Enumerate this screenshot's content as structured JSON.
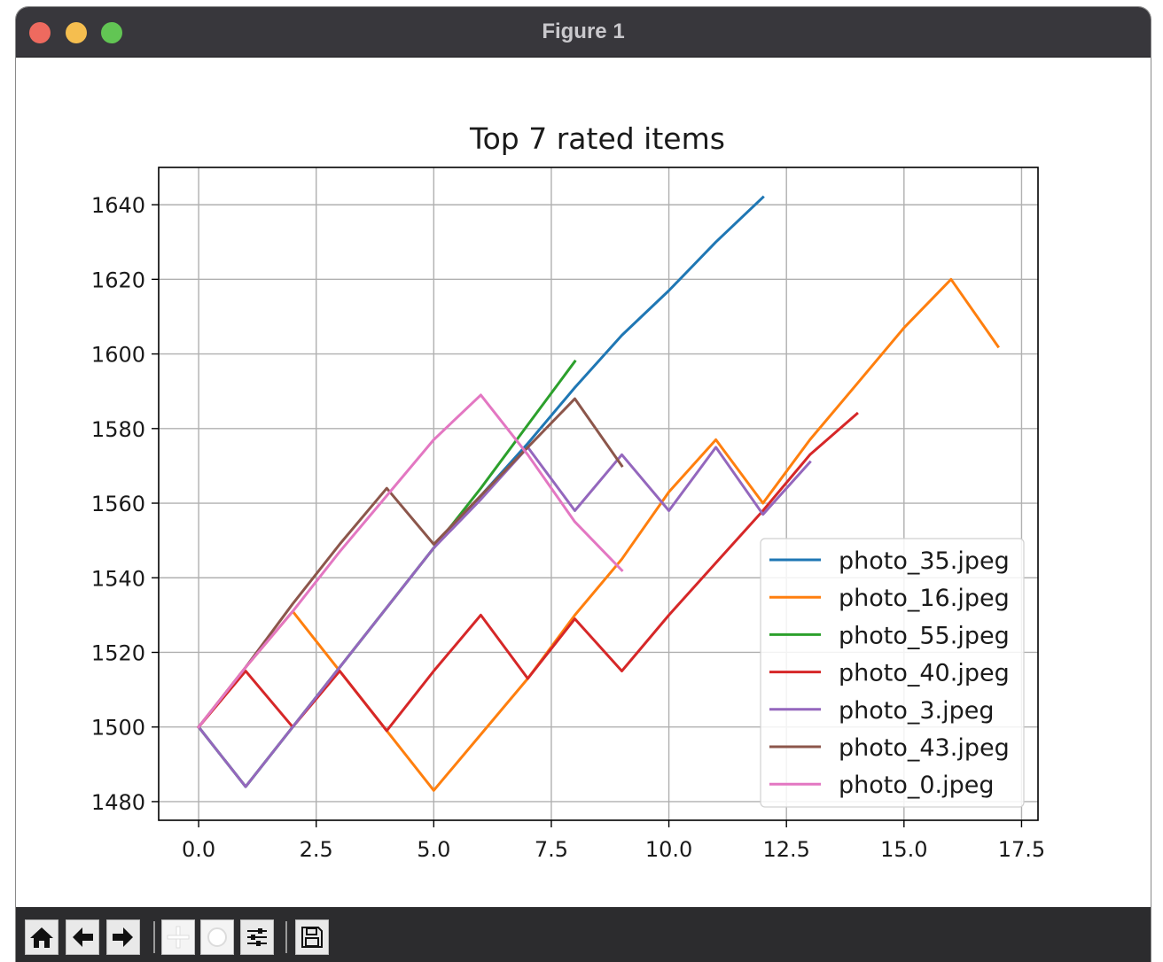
{
  "window": {
    "title": "Figure 1"
  },
  "toolbar": {
    "buttons": [
      {
        "icon": "home-icon"
      },
      {
        "icon": "back-arrow-icon"
      },
      {
        "icon": "forward-arrow-icon"
      },
      {
        "icon": "pan-icon"
      },
      {
        "icon": "zoom-icon"
      },
      {
        "icon": "configure-subplots-icon"
      },
      {
        "icon": "save-icon"
      }
    ]
  },
  "chart_data": {
    "type": "line",
    "title": "Top 7 rated items",
    "xlabel": "",
    "ylabel": "",
    "xlim": [
      -0.85,
      17.85
    ],
    "ylim": [
      1475,
      1650
    ],
    "xticks": [
      "0.0",
      "2.5",
      "5.0",
      "7.5",
      "10.0",
      "12.5",
      "15.0",
      "17.5"
    ],
    "xtick_values": [
      0,
      2.5,
      5,
      7.5,
      10,
      12.5,
      15,
      17.5
    ],
    "yticks": [
      "1480",
      "1500",
      "1520",
      "1540",
      "1560",
      "1580",
      "1600",
      "1620",
      "1640"
    ],
    "ytick_values": [
      1480,
      1500,
      1520,
      1540,
      1560,
      1580,
      1600,
      1620,
      1640
    ],
    "grid": true,
    "legend_position": "lower right",
    "series": [
      {
        "name": "photo_35.jpeg",
        "color": "#1f77b4",
        "x": [
          0,
          1,
          2,
          3,
          4,
          5,
          6,
          7,
          8,
          9,
          10,
          11,
          12
        ],
        "y": [
          1500,
          1484,
          1500,
          1516,
          1532,
          1548,
          1562,
          1576,
          1591,
          1605,
          1617,
          1630,
          1642
        ]
      },
      {
        "name": "photo_16.jpeg",
        "color": "#ff7f0e",
        "x": [
          0,
          1,
          2,
          3,
          4,
          5,
          6,
          7,
          8,
          9,
          10,
          11,
          12,
          13,
          14,
          15,
          16,
          17
        ],
        "y": [
          1500,
          1516,
          1531,
          1515,
          1499,
          1483,
          1498,
          1513,
          1530,
          1545,
          1563,
          1577,
          1560,
          1577,
          1592,
          1607,
          1620,
          1602
        ]
      },
      {
        "name": "photo_55.jpeg",
        "color": "#2ca02c",
        "x": [
          0,
          1,
          2,
          3,
          4,
          5,
          6,
          7,
          8
        ],
        "y": [
          1500,
          1484,
          1500,
          1516,
          1532,
          1548,
          1564,
          1581,
          1598
        ]
      },
      {
        "name": "photo_40.jpeg",
        "color": "#d62728",
        "x": [
          0,
          1,
          2,
          3,
          4,
          5,
          6,
          7,
          8,
          9,
          10,
          11,
          12,
          13,
          14
        ],
        "y": [
          1500,
          1515,
          1500,
          1515,
          1499,
          1515,
          1530,
          1513,
          1529,
          1515,
          1530,
          1544,
          1558,
          1573,
          1584
        ]
      },
      {
        "name": "photo_3.jpeg",
        "color": "#9467bd",
        "x": [
          0,
          1,
          2,
          3,
          4,
          5,
          6,
          7,
          8,
          9,
          10,
          11,
          12,
          13
        ],
        "y": [
          1500,
          1484,
          1500,
          1516,
          1532,
          1548,
          1561,
          1575,
          1558,
          1573,
          1558,
          1575,
          1557,
          1571
        ]
      },
      {
        "name": "photo_43.jpeg",
        "color": "#8c564b",
        "x": [
          0,
          1,
          2,
          3,
          4,
          5,
          6,
          7,
          8,
          9
        ],
        "y": [
          1500,
          1516,
          1533,
          1549,
          1564,
          1549,
          1562,
          1575,
          1588,
          1570
        ]
      },
      {
        "name": "photo_0.jpeg",
        "color": "#e377c2",
        "x": [
          0,
          1,
          2,
          3,
          4,
          5,
          6,
          7,
          8,
          9
        ],
        "y": [
          1500,
          1516,
          1531,
          1547,
          1562,
          1577,
          1589,
          1573,
          1555,
          1542
        ]
      }
    ]
  }
}
